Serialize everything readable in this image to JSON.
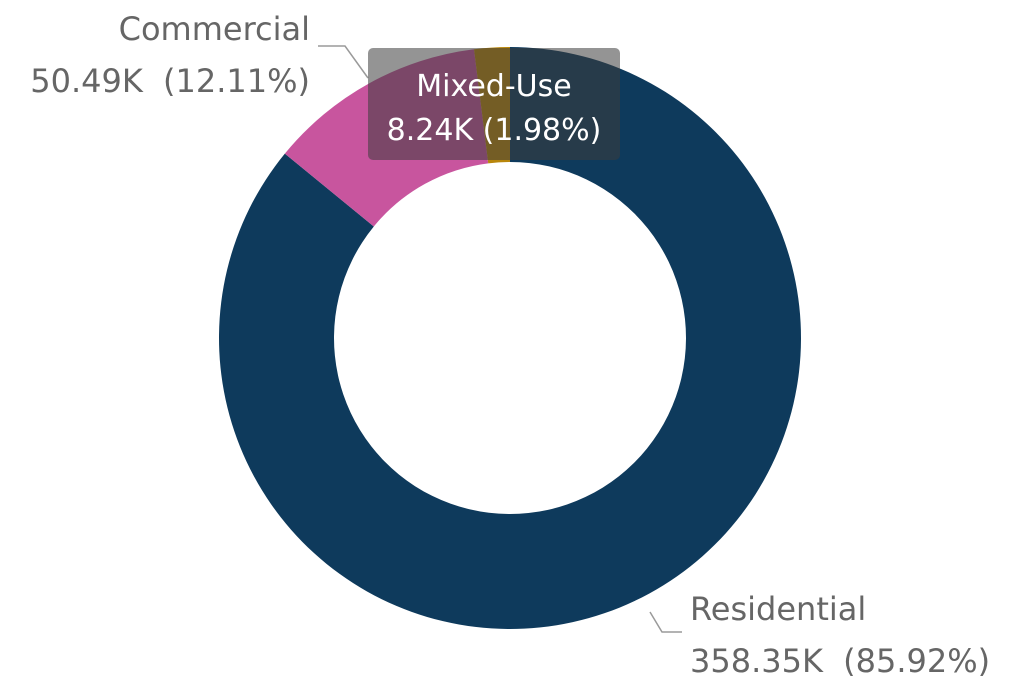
{
  "chart_data": {
    "type": "pie",
    "variant": "donut",
    "categories": [
      "Residential",
      "Commercial",
      "Mixed-Use"
    ],
    "values": [
      358350,
      50490,
      8240
    ],
    "percentages": [
      85.92,
      12.11,
      1.98
    ],
    "value_labels": [
      "358.35K",
      "50.49K",
      "8.24K"
    ],
    "percent_labels": [
      "(85.92%)",
      "(12.11%)",
      "(1.98%)"
    ],
    "colors": [
      "#0e3a5c",
      "#c8559e",
      "#b8860b"
    ],
    "start": "top",
    "direction": "clockwise",
    "legend": "none",
    "hover": {
      "category": "Mixed-Use",
      "label": "Mixed-Use",
      "value_label": "8.24K (1.98%)"
    }
  }
}
